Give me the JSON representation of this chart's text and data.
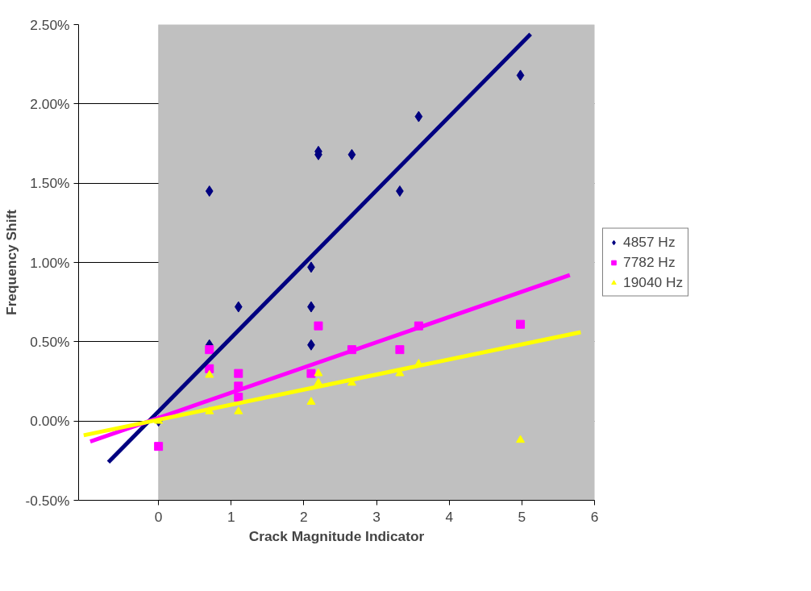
{
  "chart_data": {
    "type": "scatter",
    "xlabel": "Crack Magnitude Indicator",
    "ylabel": "Frequency Shift",
    "xlim": [
      -1.1,
      6
    ],
    "ylim": [
      -0.5,
      2.5
    ],
    "xticks": [
      0,
      1,
      2,
      3,
      4,
      5,
      6
    ],
    "yticks": [
      {
        "value": -0.5,
        "label": "-0.50%"
      },
      {
        "value": 0,
        "label": "0.00%"
      },
      {
        "value": 0.5,
        "label": "0.50%"
      },
      {
        "value": 1.0,
        "label": "1.00%"
      },
      {
        "value": 1.5,
        "label": "1.50%"
      },
      {
        "value": 2.0,
        "label": "2.00%"
      },
      {
        "value": 2.5,
        "label": "2.50%"
      }
    ],
    "grid": "y",
    "legend": "right",
    "bands": [
      {
        "axis": "x",
        "from": 0,
        "to": 6,
        "color": "#c0c0c0"
      }
    ],
    "series": [
      {
        "name": "4857 Hz",
        "color": "#000080",
        "marker": "diamond",
        "x": [
          0,
          0.7,
          0.7,
          1.1,
          2.1,
          2.1,
          2.1,
          2.2,
          2.2,
          2.66,
          3.32,
          3.58,
          4.98
        ],
        "values": [
          0,
          1.45,
          0.48,
          0.72,
          0.97,
          0.72,
          0.48,
          1.7,
          1.68,
          1.68,
          1.45,
          1.92,
          2.18
        ]
      },
      {
        "name": "7782 Hz",
        "color": "#ff00ff",
        "marker": "square",
        "x": [
          0,
          0.7,
          0.7,
          1.1,
          1.1,
          1.1,
          2.1,
          2.2,
          2.66,
          3.32,
          3.58,
          4.98
        ],
        "values": [
          -0.16,
          0.45,
          0.33,
          0.3,
          0.22,
          0.15,
          0.3,
          0.6,
          0.45,
          0.45,
          0.6,
          0.61
        ]
      },
      {
        "name": "19040 Hz",
        "color": "#ffff00",
        "marker": "triangle",
        "x": [
          0,
          0.7,
          0.7,
          1.1,
          2.1,
          2.2,
          2.2,
          2.66,
          3.32,
          3.58,
          4.98
        ],
        "values": [
          0,
          0.29,
          0.06,
          0.06,
          0.12,
          0.3,
          0.24,
          0.24,
          0.3,
          0.36,
          -0.12
        ]
      },
      {
        "type": "line",
        "color": "#000080",
        "x": [
          -0.69,
          5.12
        ],
        "values": [
          -0.26,
          2.44
        ]
      },
      {
        "type": "line",
        "color": "#ff00ff",
        "x": [
          -0.94,
          5.66
        ],
        "values": [
          -0.13,
          0.92
        ]
      },
      {
        "type": "line",
        "color": "#ffff00",
        "x": [
          -1.03,
          5.81
        ],
        "values": [
          -0.09,
          0.56
        ]
      }
    ]
  }
}
